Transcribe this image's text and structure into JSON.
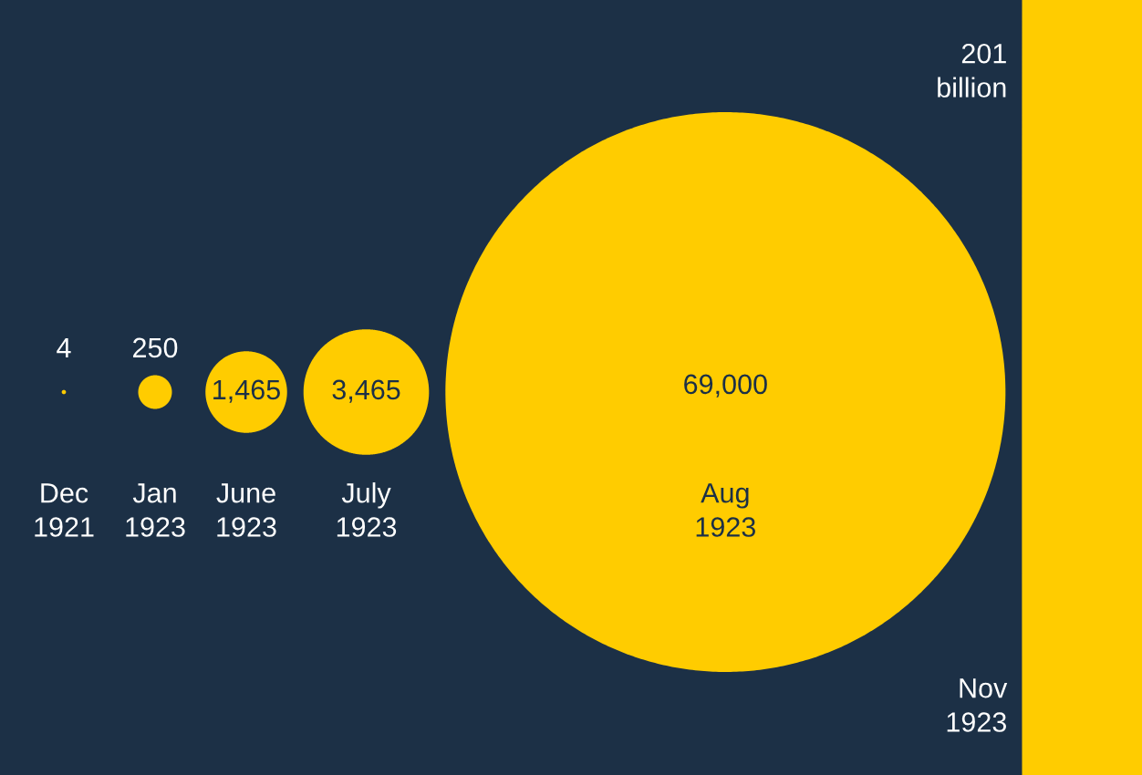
{
  "chart_data": {
    "type": "other",
    "categories": [
      "Dec\n1921",
      "Jan\n1923",
      "June\n1923",
      "July\n1923",
      "Aug\n1923",
      "Nov\n1923"
    ],
    "values": [
      4,
      250,
      1465,
      3465,
      69000,
      201000000000
    ],
    "value_labels": [
      "4",
      "250",
      "1,465",
      "3,465",
      "69,000",
      "201\nbillion"
    ],
    "color": "#ffcc00"
  }
}
